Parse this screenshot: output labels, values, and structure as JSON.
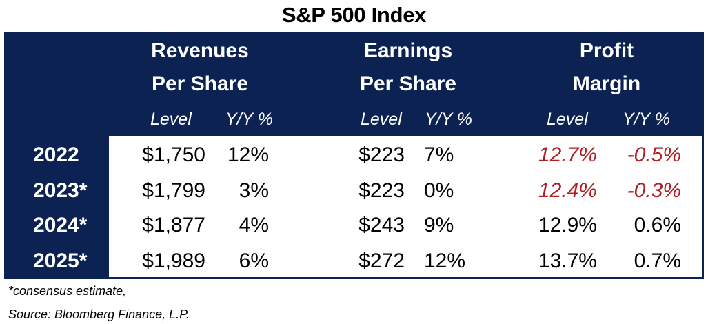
{
  "title": "S&P 500 Index",
  "headers": {
    "revenues": [
      "Revenues",
      "Per Share"
    ],
    "earnings": [
      "Earnings",
      "Per Share"
    ],
    "margin": [
      "Profit",
      "Margin"
    ]
  },
  "subheaders": {
    "level": "Level",
    "yoy": "Y/Y %"
  },
  "rows": [
    {
      "year": "2022",
      "rev_level": "$1,750",
      "rev_yoy": "12%",
      "eps_level": "$223",
      "eps_yoy": "7%",
      "margin_level": "12.7%",
      "margin_yoy": "-0.5%",
      "margin_down": true
    },
    {
      "year": "2023*",
      "rev_level": "$1,799",
      "rev_yoy": "3%",
      "eps_level": "$223",
      "eps_yoy": "0%",
      "margin_level": "12.4%",
      "margin_yoy": "-0.3%",
      "margin_down": true
    },
    {
      "year": "2024*",
      "rev_level": "$1,877",
      "rev_yoy": "4%",
      "eps_level": "$243",
      "eps_yoy": "9%",
      "margin_level": "12.9%",
      "margin_yoy": "0.6%",
      "margin_down": false
    },
    {
      "year": "2025*",
      "rev_level": "$1,989",
      "rev_yoy": "6%",
      "eps_level": "$272",
      "eps_yoy": "12%",
      "margin_level": "13.7%",
      "margin_yoy": "0.7%",
      "margin_down": false
    }
  ],
  "footnotes": {
    "estimate": "*consensus estimate,",
    "source": "Source: Bloomberg Finance, L.P."
  },
  "colors": {
    "header_bg": "#0b2252",
    "negative": "#b01f24"
  },
  "chart_data": {
    "type": "table",
    "title": "S&P 500 Index",
    "columns": [
      "Revenues Per Share Level",
      "Revenues Per Share Y/Y %",
      "Earnings Per Share Level",
      "Earnings Per Share Y/Y %",
      "Profit Margin Level",
      "Profit Margin Y/Y %"
    ],
    "row_labels": [
      "2022",
      "2023*",
      "2024*",
      "2025*"
    ],
    "values": [
      [
        "$1,750",
        "12%",
        "$223",
        "7%",
        "12.7%",
        "-0.5%"
      ],
      [
        "$1,799",
        "3%",
        "$223",
        "0%",
        "12.4%",
        "-0.3%"
      ],
      [
        "$1,877",
        "4%",
        "$243",
        "9%",
        "12.9%",
        "0.6%"
      ],
      [
        "$1,989",
        "6%",
        "$272",
        "12%",
        "13.7%",
        "0.7%"
      ]
    ]
  }
}
